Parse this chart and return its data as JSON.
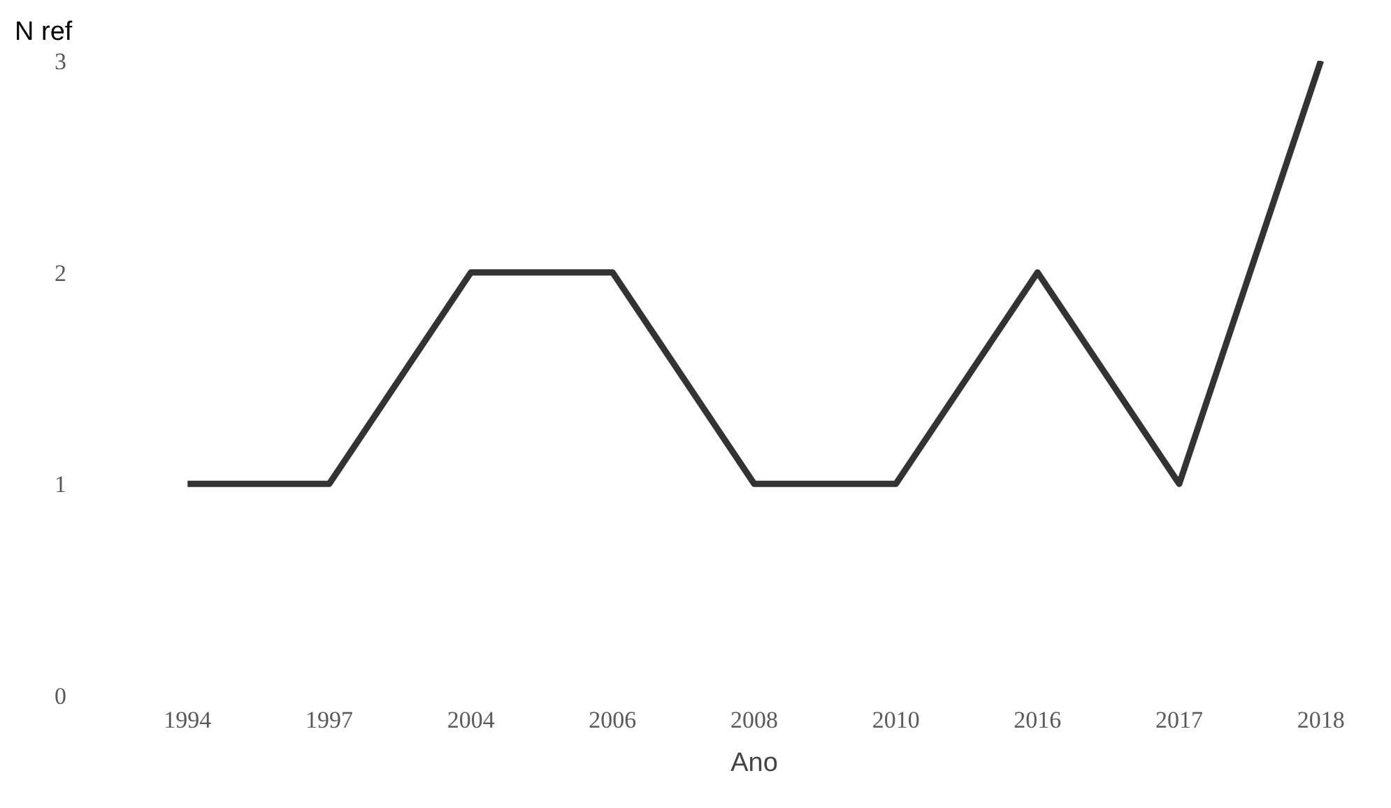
{
  "chart_data": {
    "type": "line",
    "xlabel": "Ano",
    "ylabel": "N ref",
    "categories": [
      "1994",
      "1997",
      "2004",
      "2006",
      "2008",
      "2010",
      "2016",
      "2017",
      "2018"
    ],
    "series": [
      {
        "color": "#333333",
        "values": [
          1,
          1,
          2,
          2,
          1,
          1,
          2,
          1,
          3
        ]
      }
    ],
    "ylim": [
      0,
      3
    ],
    "yticks": [
      0,
      1,
      2,
      3
    ],
    "grid": false,
    "marker": "none",
    "line_style": "solid"
  }
}
